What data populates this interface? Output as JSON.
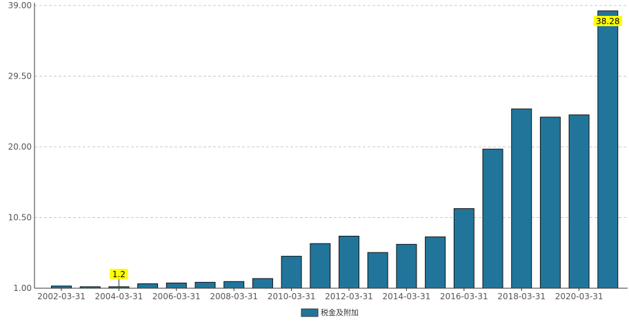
{
  "chart_data": {
    "type": "bar",
    "categories": [
      "2002-03-31",
      "2003-03-31",
      "2004-03-31",
      "2005-03-31",
      "2006-03-31",
      "2007-03-31",
      "2008-03-31",
      "2009-03-31",
      "2010-03-31",
      "2011-03-31",
      "2012-03-31",
      "2013-03-31",
      "2014-03-31",
      "2015-03-31",
      "2016-03-31",
      "2017-03-31",
      "2018-03-31",
      "2019-03-31",
      "2020-03-31",
      "2021-03-31"
    ],
    "x_tick_labels": [
      "2002-03-31",
      "2004-03-31",
      "2006-03-31",
      "2008-03-31",
      "2010-03-31",
      "2012-03-31",
      "2014-03-31",
      "2016-03-31",
      "2018-03-31",
      "2020-03-31"
    ],
    "series": [
      {
        "name": "税金及附加",
        "color": "#21759b",
        "values": [
          1.3,
          1.2,
          1.2,
          1.6,
          1.7,
          1.8,
          1.9,
          2.3,
          5.3,
          7.0,
          8.0,
          5.8,
          6.9,
          7.9,
          11.7,
          19.7,
          25.1,
          24.0,
          24.3,
          38.28
        ]
      }
    ],
    "annotations": [
      {
        "category": "2004-03-31",
        "text": "1.2"
      },
      {
        "category": "2021-03-31",
        "text": "38.28"
      }
    ],
    "y_ticks": [
      "1.00",
      "10.50",
      "20.00",
      "29.50",
      "39.00"
    ],
    "ylim": [
      1.0,
      39.0
    ],
    "grid": "horizontal-dashed",
    "legend_position": "bottom-center",
    "annotation_bg": "#ffff00"
  }
}
